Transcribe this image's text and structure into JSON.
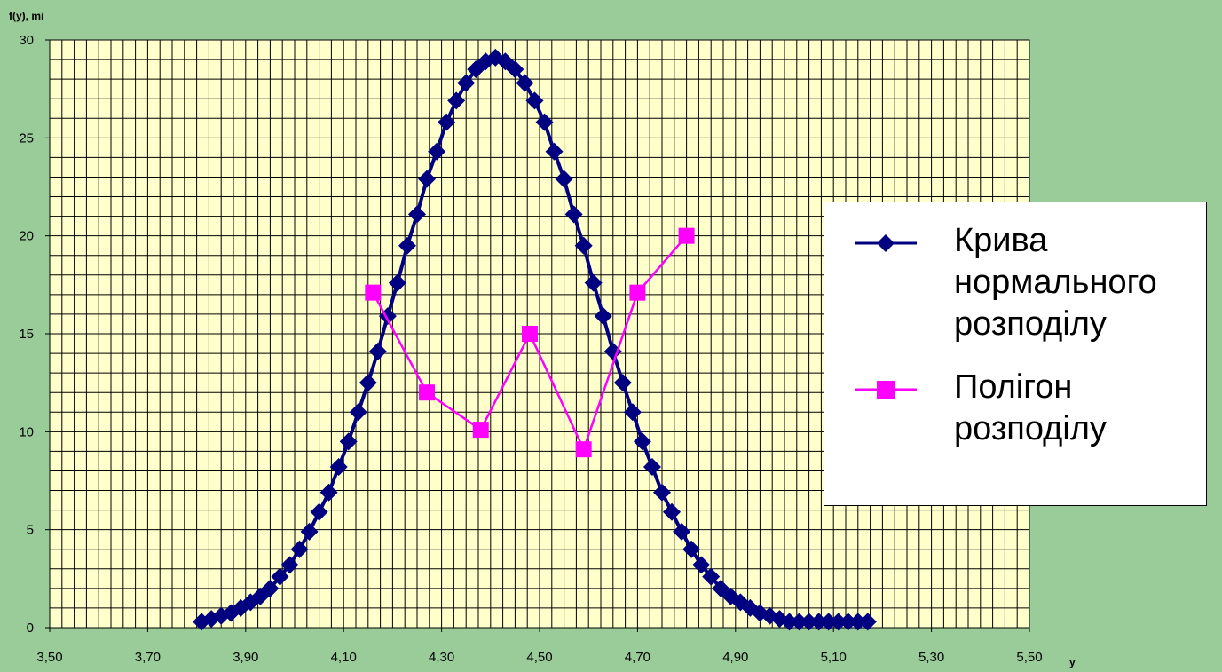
{
  "colors": {
    "page_background": "#99cc99",
    "plot_background": "#ffffcc",
    "grid": "#000000",
    "normal_curve": "#000080",
    "polygon": "#ff00ff",
    "legend_background": "#ffffff"
  },
  "chart_data": {
    "type": "line",
    "title": "",
    "xlabel": "y",
    "ylabel": "f(y), mi",
    "xlim": [
      3.5,
      5.5
    ],
    "ylim": [
      0,
      30
    ],
    "x_ticks": [
      "3,50",
      "3,70",
      "3,90",
      "4,10",
      "4,30",
      "4,50",
      "4,70",
      "4,90",
      "5,10",
      "5,30",
      "5,50"
    ],
    "y_ticks": [
      "0",
      "5",
      "10",
      "15",
      "20",
      "25",
      "30"
    ],
    "grid": true,
    "legend_position": "right",
    "series": [
      {
        "name": "Крива нормального розподілу",
        "marker": "diamond",
        "color": "#000080",
        "x": [
          3.81,
          3.83,
          3.85,
          3.87,
          3.89,
          3.91,
          3.93,
          3.95,
          3.97,
          3.99,
          4.01,
          4.03,
          4.05,
          4.07,
          4.09,
          4.11,
          4.13,
          4.15,
          4.17,
          4.19,
          4.21,
          4.23,
          4.25,
          4.27,
          4.29,
          4.31,
          4.33,
          4.35,
          4.37,
          4.39,
          4.41,
          4.43,
          4.45,
          4.47,
          4.49,
          4.51,
          4.53,
          4.55,
          4.57,
          4.59,
          4.61,
          4.63,
          4.65,
          4.67,
          4.69,
          4.71,
          4.73,
          4.75,
          4.77,
          4.79,
          4.81,
          4.83,
          4.85,
          4.87,
          4.89,
          4.91,
          4.93,
          4.95,
          4.97,
          4.99,
          5.01,
          5.03,
          5.05,
          5.07,
          5.09,
          5.11,
          5.13,
          5.15,
          5.17
        ],
        "y": [
          0.3,
          0.45,
          0.6,
          0.75,
          1.0,
          1.3,
          1.6,
          2.0,
          2.6,
          3.2,
          4.0,
          4.9,
          5.9,
          6.9,
          8.2,
          9.5,
          11.0,
          12.5,
          14.1,
          15.9,
          17.6,
          19.5,
          21.1,
          22.9,
          24.3,
          25.8,
          26.9,
          27.8,
          28.5,
          28.9,
          29.1,
          28.9,
          28.5,
          27.8,
          26.9,
          25.8,
          24.3,
          22.9,
          21.1,
          19.5,
          17.6,
          15.9,
          14.1,
          12.5,
          11.0,
          9.5,
          8.2,
          6.9,
          5.9,
          4.9,
          4.0,
          3.2,
          2.6,
          2.0,
          1.6,
          1.3,
          1.0,
          0.75,
          0.6,
          0.45,
          0.3,
          0.3,
          0.3,
          0.3,
          0.3,
          0.3,
          0.3,
          0.3,
          0.3
        ]
      },
      {
        "name": "Полігон розподілу",
        "marker": "square",
        "color": "#ff00ff",
        "x": [
          4.16,
          4.27,
          4.38,
          4.48,
          4.59,
          4.7,
          4.8
        ],
        "y": [
          17.1,
          12.0,
          10.1,
          15.0,
          9.1,
          17.1,
          20.0
        ]
      }
    ]
  },
  "legend": {
    "entries": [
      {
        "label": "Крива\nнормального\nрозподілу"
      },
      {
        "label": "Полігон\nрозподілу"
      }
    ]
  }
}
